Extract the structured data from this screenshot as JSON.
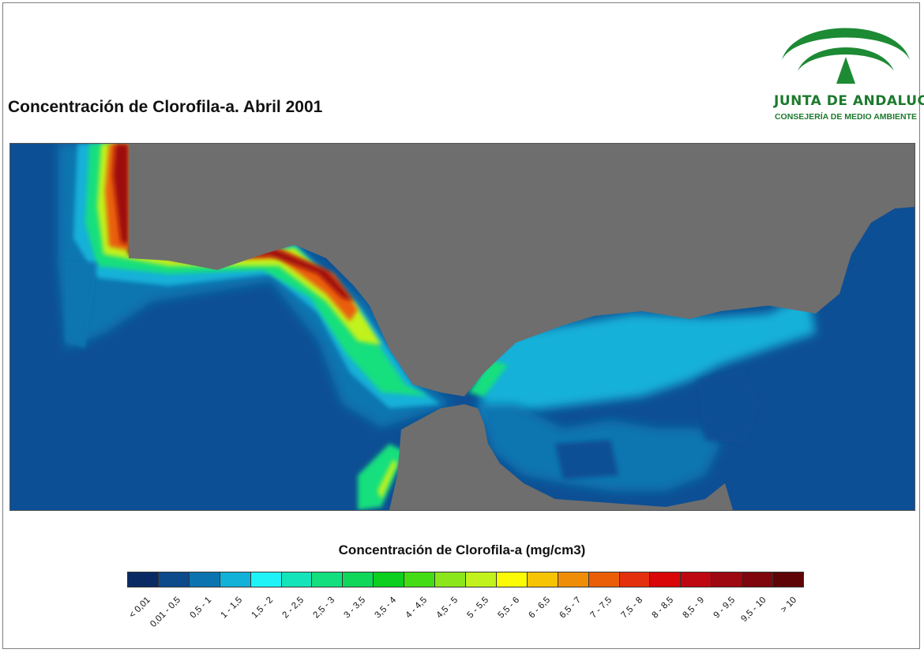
{
  "title": "Concentración de Clorofila-a. Abril 2001",
  "logo": {
    "name": "JUNTA DE ANDALUCIA",
    "subtitle": "CONSEJERÍA DE MEDIO AMBIENTE",
    "icon": "junta-andalucia-arch-logo",
    "color": "#1d7a2e"
  },
  "map": {
    "land_color": "#6e6e6e",
    "sea_base_color": "#0d4f94"
  },
  "legend": {
    "title": "Concentración de Clorofila-a (mg/cm3)",
    "classes": [
      {
        "label": "< 0,01",
        "color": "#0a2a63"
      },
      {
        "label": "0,01 - 0,5",
        "color": "#0d4a8c"
      },
      {
        "label": "0,5 - 1",
        "color": "#0b74b0"
      },
      {
        "label": "1 - 1,5",
        "color": "#12b1d8"
      },
      {
        "label": "1,5 - 2",
        "color": "#1ff3f7"
      },
      {
        "label": "2 - 2,5",
        "color": "#14e4b9"
      },
      {
        "label": "2,5 - 3",
        "color": "#14df7e"
      },
      {
        "label": "3 - 3,5",
        "color": "#10d65a"
      },
      {
        "label": "3,5 - 4",
        "color": "#0ccf1f"
      },
      {
        "label": "4 - 4,5",
        "color": "#44dc14"
      },
      {
        "label": "4,5 - 5",
        "color": "#8ce61c"
      },
      {
        "label": "5 - 5,5",
        "color": "#c2f21d"
      },
      {
        "label": "5,5 - 6",
        "color": "#fbfb05"
      },
      {
        "label": "6 - 6,5",
        "color": "#f6c305"
      },
      {
        "label": "6,5 - 7",
        "color": "#ef8d08"
      },
      {
        "label": "7 - 7,5",
        "color": "#ea5e07"
      },
      {
        "label": "7,5 - 8",
        "color": "#e4300c"
      },
      {
        "label": "8 - 8,5",
        "color": "#d90707"
      },
      {
        "label": "8,5 - 9",
        "color": "#be0710"
      },
      {
        "label": "9 - 9,5",
        "color": "#9e0810"
      },
      {
        "label": "9,5 - 10",
        "color": "#7e060c"
      },
      {
        "label": "> 10",
        "color": "#5e0406"
      }
    ]
  }
}
